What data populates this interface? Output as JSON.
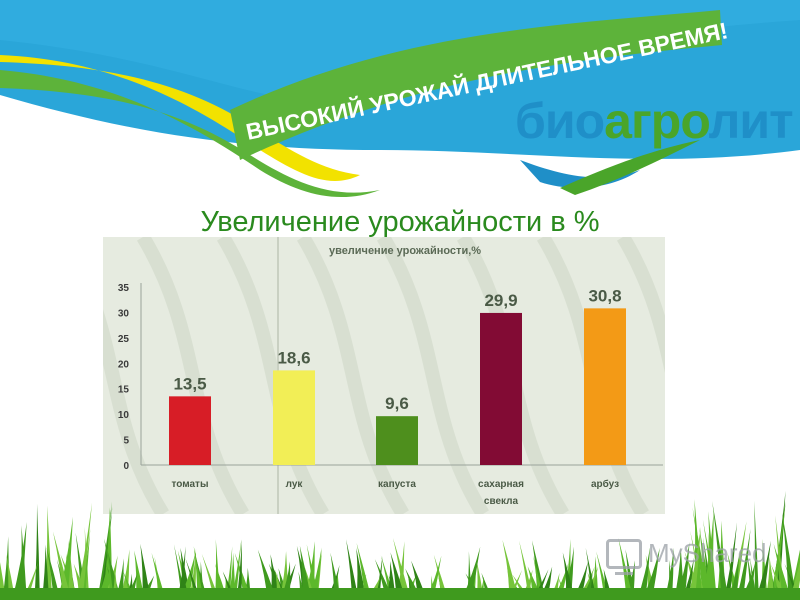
{
  "banner": {
    "slogan": "ВЫСОКИЙ УРОЖАЙ ДЛИТЕЛЬНОЕ ВРЕМЯ!",
    "logo_part1": "био",
    "logo_part2": "агро",
    "logo_part3": "лит"
  },
  "slide": {
    "title": "Увеличение урожайности в %"
  },
  "watermark": {
    "text": "MyShared"
  },
  "colors": {
    "sky": "#2aa6d9",
    "swoosh_yellow": "#f2e200",
    "swoosh_green": "#5db33a",
    "title_green": "#2a8a1e"
  },
  "chart_data": {
    "type": "bar",
    "title": "увеличение урожайности,%",
    "xlabel": "",
    "ylabel": "",
    "ylim": [
      0,
      35
    ],
    "yticks": [
      "0",
      "5",
      "10",
      "15",
      "20",
      "25",
      "30",
      "35"
    ],
    "categories": [
      "томаты",
      "лук",
      "капуста",
      "сахарная свекла",
      "арбуз"
    ],
    "category_lines": [
      [
        "томаты"
      ],
      [
        "лук"
      ],
      [
        "капуста"
      ],
      [
        "сахарная",
        "свекла"
      ],
      [
        "арбуз"
      ]
    ],
    "values": [
      13.5,
      18.6,
      9.6,
      29.9,
      30.8
    ],
    "value_labels": [
      "13,5",
      "18,6",
      "9,6",
      "29,9",
      "30,8"
    ],
    "colors": [
      "#d71d26",
      "#f2ee56",
      "#4e8f1d",
      "#820b34",
      "#f39a16"
    ],
    "grid": false,
    "legend": "none"
  }
}
